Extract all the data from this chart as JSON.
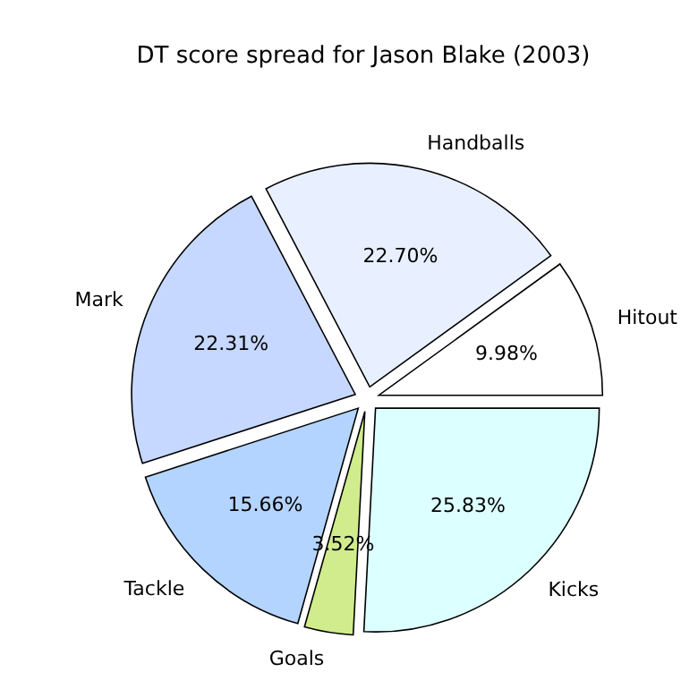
{
  "chart_data": {
    "type": "pie",
    "title": "DT score spread for Jason Blake (2003)",
    "categories": [
      "Hitout",
      "Handballs",
      "Mark",
      "Tackle",
      "Goals",
      "Kicks"
    ],
    "values": [
      9.98,
      22.7,
      22.31,
      15.66,
      3.52,
      25.83
    ],
    "value_labels": [
      "9.98%",
      "22.70%",
      "22.31%",
      "15.66%",
      "3.52%",
      "25.83%"
    ],
    "colors": [
      "#ffffff",
      "#e8f0ff",
      "#c6d8ff",
      "#b3d4ff",
      "#d0ec8c",
      "#dcffff"
    ],
    "legend": false
  }
}
